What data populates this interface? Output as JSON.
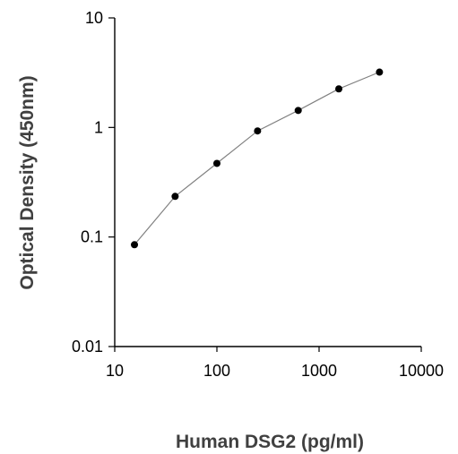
{
  "chart_data": {
    "type": "line",
    "title": "",
    "xlabel": "Human DSG2 (pg/ml)",
    "ylabel": "Optical Density (450nm)",
    "x_scale": "log",
    "y_scale": "log",
    "xlim": [
      10,
      10000
    ],
    "ylim": [
      0.01,
      10
    ],
    "x_ticks": [
      10,
      100,
      1000,
      10000
    ],
    "x_tick_labels": [
      "10",
      "100",
      "1000",
      "10000"
    ],
    "y_ticks": [
      0.01,
      0.1,
      1,
      10
    ],
    "y_tick_labels": [
      "0.01",
      "0.1",
      "1",
      "10"
    ],
    "grid": false,
    "legend": "none",
    "series": [
      {
        "x": [
          15.6,
          39,
          100,
          250,
          625,
          1560,
          3900
        ],
        "y": [
          0.085,
          0.235,
          0.47,
          0.93,
          1.43,
          2.25,
          3.2
        ]
      }
    ],
    "colors": {
      "line": "#808080",
      "marker": "#000000",
      "axis": "#000000",
      "axis_title": "#404040"
    }
  }
}
